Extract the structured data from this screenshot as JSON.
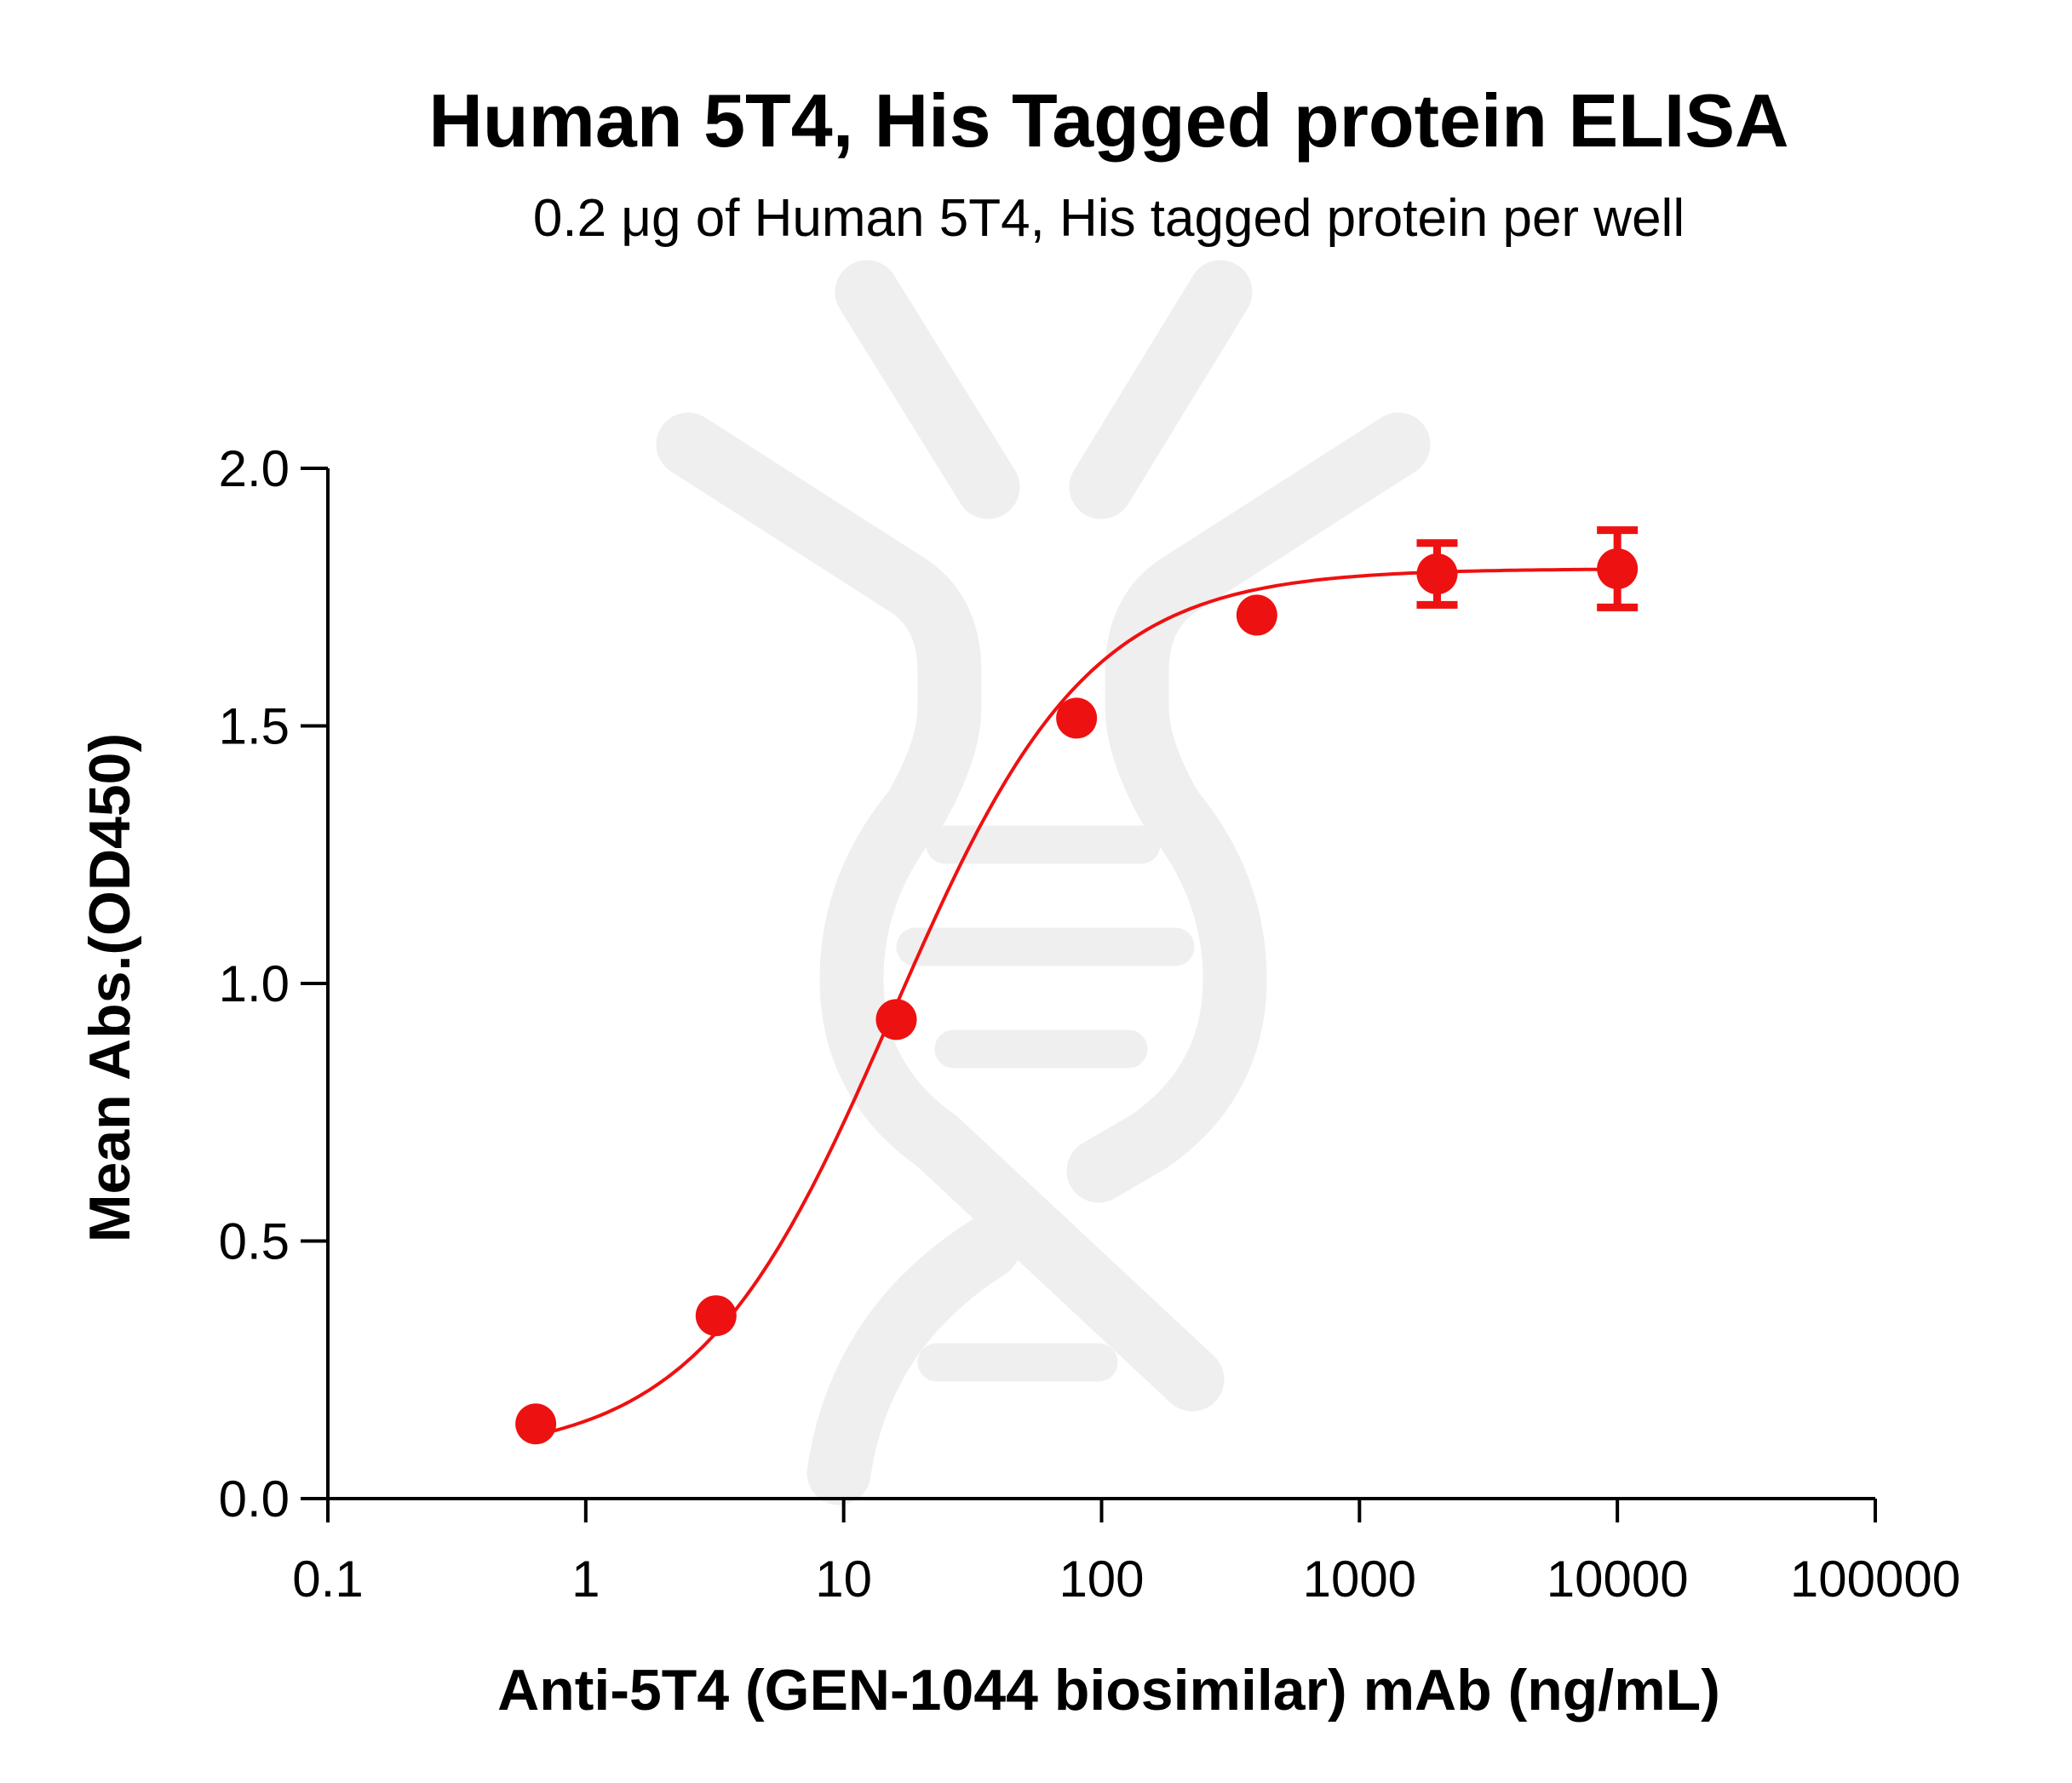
{
  "chart_data": {
    "type": "scatter",
    "title": "Human 5T4, His Tagged protein ELISA",
    "subtitle": "0.2 μg of Human 5T4, His tagged protein per well",
    "xlabel": "Anti-5T4 (GEN-1044 biosimilar) mAb (ng/mL)",
    "ylabel": "Mean Abs.(OD450)",
    "xscale": "log",
    "xlim": [
      0.1,
      100000
    ],
    "ylim": [
      0,
      2.0
    ],
    "x_ticks": [
      0.1,
      1,
      10,
      100,
      1000,
      10000,
      100000
    ],
    "x_tick_labels": [
      "0.1",
      "1",
      "10",
      "100",
      "1000",
      "10000",
      "100000"
    ],
    "y_ticks": [
      0,
      0.5,
      1.0,
      1.5,
      2.0
    ],
    "y_tick_labels": [
      "0.0",
      "0.5",
      "1.0",
      "1.5",
      "2.0"
    ],
    "grid": false,
    "series": [
      {
        "color": "#ee1111",
        "points": [
          {
            "x": 0.64,
            "y": 0.145,
            "err": 0
          },
          {
            "x": 3.2,
            "y": 0.355,
            "err": 0
          },
          {
            "x": 16,
            "y": 0.93,
            "err": 0
          },
          {
            "x": 80,
            "y": 1.515,
            "err": 0
          },
          {
            "x": 400,
            "y": 1.715,
            "err": 0
          },
          {
            "x": 2000,
            "y": 1.795,
            "err": 0.06
          },
          {
            "x": 10000,
            "y": 1.805,
            "err": 0.075
          }
        ],
        "fit": {
          "model": "4PL",
          "bottom": 0.08,
          "top": 1.805,
          "ec50": 15.5,
          "hill": 1.15
        }
      }
    ]
  }
}
